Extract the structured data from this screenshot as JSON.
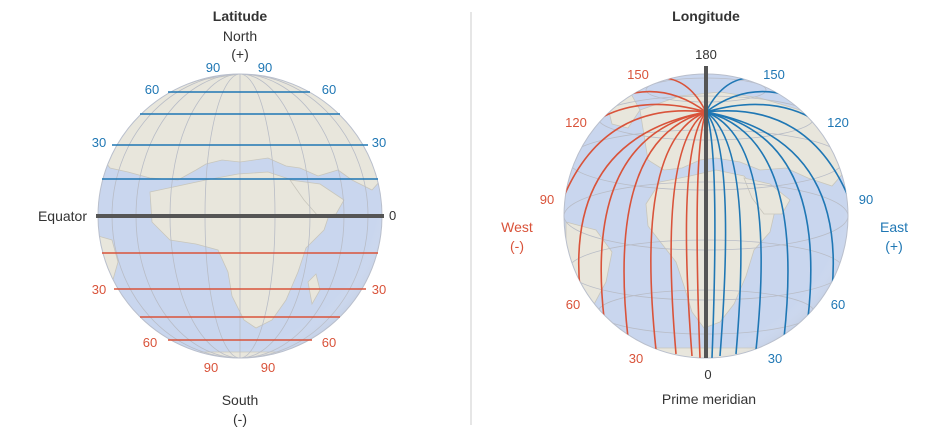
{
  "latitude": {
    "title": "Latitude",
    "north": "North",
    "north_sign": "(+)",
    "south": "South",
    "south_sign": "(-)",
    "equator": "Equator",
    "equator_value": "0",
    "north_labels": {
      "deg90": "90",
      "deg60": "60",
      "deg30": "30"
    },
    "south_labels": {
      "deg90": "90",
      "deg60": "60",
      "deg30": "30"
    }
  },
  "longitude": {
    "title": "Longitude",
    "top_value": "180",
    "bottom_value": "0",
    "prime_meridian": "Prime meridian",
    "west": "West",
    "west_sign": "(-)",
    "east": "East",
    "east_sign": "(+)",
    "west_labels": {
      "deg150": "150",
      "deg120": "120",
      "deg90": "90",
      "deg60": "60",
      "deg30": "30"
    },
    "east_labels": {
      "deg150": "150",
      "deg120": "120",
      "deg90": "90",
      "deg60": "60",
      "deg30": "30"
    }
  },
  "colors": {
    "north_east": "#1f77b4",
    "south_west": "#d9533a",
    "axis": "#555555",
    "ocean": "#c9d6ee",
    "land": "#e8e6dc",
    "divider": "#dddddd"
  }
}
